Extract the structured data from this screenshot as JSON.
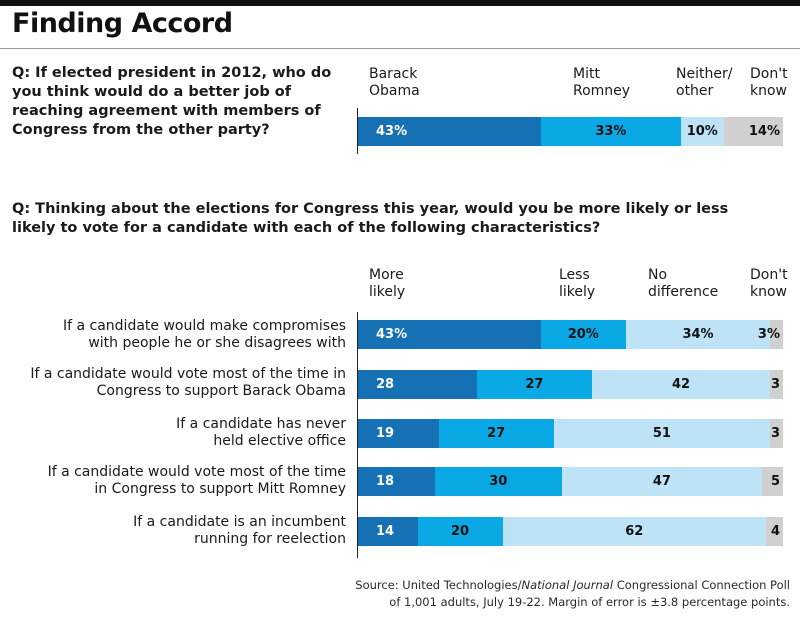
{
  "title": "Finding Accord",
  "colors": {
    "dark_blue": "#1670b4",
    "mid_blue": "#0aa9e6",
    "light_blue": "#bfe3f6",
    "gray": "#d0d0d0"
  },
  "q1": {
    "question": "Q: If elected president in 2012, who do you think would do a better job of reaching agreement with members of Congress from the other party?",
    "headers": [
      "Barack\nObama",
      "Mitt\nRomney",
      "Neither/\nother",
      "Don't\nknow"
    ]
  },
  "q2": {
    "question": "Q: Thinking about the elections for Congress this year, would you be more likely or less likely to vote for a candidate with each of the following characteristics?",
    "headers": [
      "More\nlikely",
      "Less\nlikely",
      "No\ndifference",
      "Don't\nknow"
    ]
  },
  "chart_data": [
    {
      "type": "bar",
      "orientation": "horizontal",
      "stacked": true,
      "categories": [
        ""
      ],
      "series": [
        {
          "name": "Barack Obama",
          "values": [
            43
          ],
          "labels": [
            "43%"
          ]
        },
        {
          "name": "Mitt Romney",
          "values": [
            33
          ],
          "labels": [
            "33%"
          ]
        },
        {
          "name": "Neither/ other",
          "values": [
            10
          ],
          "labels": [
            "10%"
          ]
        },
        {
          "name": "Don't know",
          "values": [
            14
          ],
          "labels": [
            "14%"
          ]
        }
      ]
    },
    {
      "type": "bar",
      "orientation": "horizontal",
      "stacked": true,
      "categories": [
        "If a candidate would make compromises\nwith people he or she disagrees with",
        "If a candidate would vote most of the time in\nCongress to support Barack Obama",
        "If a candidate has never\nheld elective office",
        "If a candidate would vote most of the time\nin Congress to support Mitt Romney",
        "If a candidate is an incumbent\nrunning for reelection"
      ],
      "series": [
        {
          "name": "More likely",
          "values": [
            43,
            28,
            19,
            18,
            14
          ],
          "labels": [
            "43%",
            "28",
            "19",
            "18",
            "14"
          ]
        },
        {
          "name": "Less likely",
          "values": [
            20,
            27,
            27,
            30,
            20
          ],
          "labels": [
            "20%",
            "27",
            "27",
            "30",
            "20"
          ]
        },
        {
          "name": "No difference",
          "values": [
            34,
            42,
            51,
            47,
            62
          ],
          "labels": [
            "34%",
            "42",
            "51",
            "47",
            "62"
          ]
        },
        {
          "name": "Don't know",
          "values": [
            3,
            3,
            3,
            5,
            4
          ],
          "labels": [
            "3%",
            "3",
            "3",
            "5",
            "4"
          ]
        }
      ]
    }
  ],
  "source": {
    "prefix": "Source: United Technologies/",
    "italic": "National Journal",
    "suffix": " Congressional Connection Poll",
    "line2": "of 1,001 adults, July 19-22. Margin of error is ±3.8 percentage points."
  }
}
